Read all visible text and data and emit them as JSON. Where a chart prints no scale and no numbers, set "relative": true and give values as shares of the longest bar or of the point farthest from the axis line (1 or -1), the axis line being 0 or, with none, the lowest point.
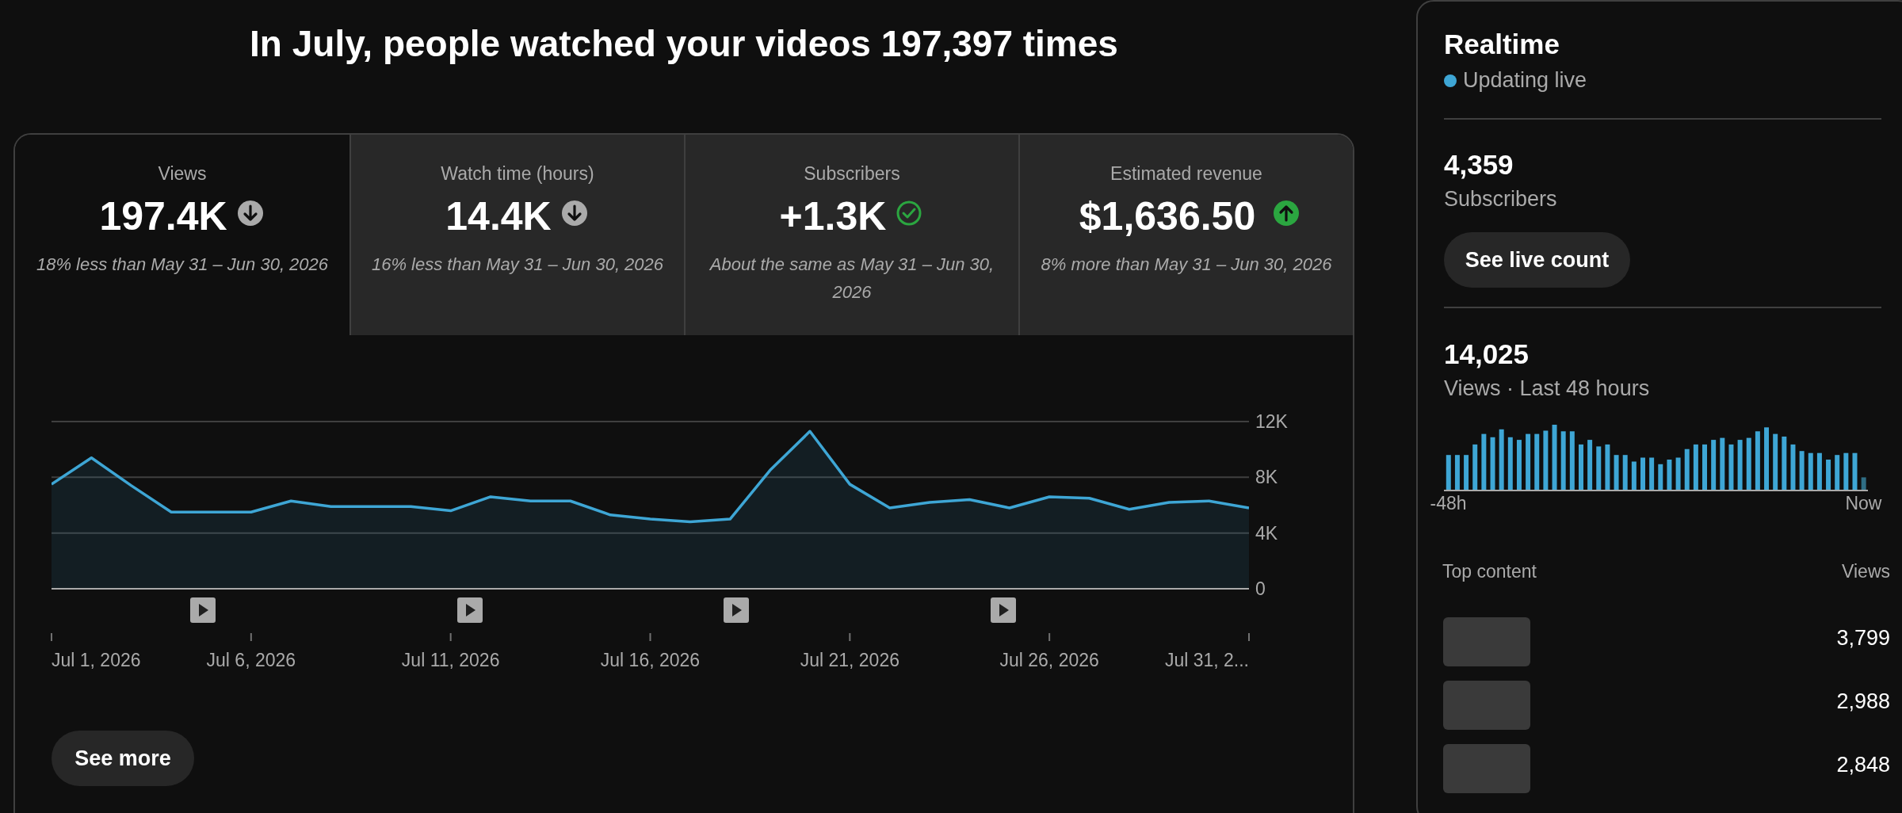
{
  "chart_data": [
    {
      "type": "other",
      "title": "In July, people watched your videos 197,397 times",
      "annotations": [
        "Views",
        "197.4K",
        "18% less than May 31 – Jun 30, 2026",
        "Watch time (hours)",
        "14.4K",
        "16% less than May 31 – Jun 30, 2026",
        "Subscribers",
        "+1.3K",
        "About the same as May 31 – Jun 30, 2026",
        "Estimated revenue",
        "$1,636.50",
        "8% more than May 31 – Jun 30, 2026",
        "See more"
      ]
    },
    {
      "type": "area",
      "x": [
        "2026-07-01",
        "2026-07-02",
        "2026-07-03",
        "2026-07-04",
        "2026-07-05",
        "2026-07-06",
        "2026-07-07",
        "2026-07-08",
        "2026-07-09",
        "2026-07-10",
        "2026-07-11",
        "2026-07-12",
        "2026-07-13",
        "2026-07-14",
        "2026-07-15",
        "2026-07-16",
        "2026-07-17",
        "2026-07-18",
        "2026-07-19",
        "2026-07-20",
        "2026-07-21",
        "2026-07-22",
        "2026-07-23",
        "2026-07-24",
        "2026-07-25",
        "2026-07-26",
        "2026-07-27",
        "2026-07-28",
        "2026-07-29",
        "2026-07-30",
        "2026-07-31"
      ],
      "series": [
        {
          "color": "#3ea6d5",
          "values": [
            7500,
            9400,
            7400,
            5500,
            5500,
            5500,
            6300,
            5900,
            5900,
            5900,
            5600,
            6600,
            6300,
            6300,
            5300,
            5000,
            4800,
            5000,
            8500,
            11300,
            7500,
            5800,
            6200,
            6400,
            5800,
            6600,
            6500,
            5700,
            6200,
            6300,
            5800
          ]
        }
      ],
      "xlim": [
        "2026-07-01",
        "2026-07-31"
      ],
      "xticks": [
        {
          "value": "2026-07-01",
          "label": "Jul 1, 2026"
        },
        {
          "value": "2026-07-06",
          "label": "Jul 6, 2026"
        },
        {
          "value": "2026-07-11",
          "label": "Jul 11, 2026"
        },
        {
          "value": "2026-07-16",
          "label": "Jul 16, 2026"
        },
        {
          "value": "2026-07-21",
          "label": "Jul 21, 2026"
        },
        {
          "value": "2026-07-26",
          "label": "Jul 26, 2026"
        },
        {
          "value": "2026-07-31",
          "label": "Jul 31, 2..."
        }
      ],
      "ylim": [
        0,
        12000
      ],
      "yticks": [
        {
          "value": 0,
          "label": "0"
        },
        {
          "value": 4000,
          "label": "4K"
        },
        {
          "value": 8000,
          "label": "8K"
        },
        {
          "value": 12000,
          "label": "12K"
        }
      ],
      "grid": "y"
    },
    {
      "type": "bar",
      "title": "Realtime",
      "subtitle": "Updating live",
      "annotations": [
        "4,359",
        "Subscribers",
        "See live count",
        "14,025",
        "Views · Last 48 hours"
      ],
      "relative": true,
      "categories": [
        "-48h",
        null,
        null,
        null,
        null,
        null,
        null,
        null,
        null,
        null,
        null,
        null,
        null,
        null,
        null,
        null,
        null,
        null,
        null,
        null,
        null,
        null,
        null,
        null,
        null,
        null,
        null,
        null,
        null,
        null,
        null,
        null,
        null,
        null,
        null,
        null,
        null,
        null,
        null,
        null,
        null,
        null,
        null,
        null,
        null,
        null,
        null,
        "Now"
      ],
      "values": [
        0.54,
        0.54,
        0.54,
        0.7,
        0.86,
        0.81,
        0.93,
        0.81,
        0.77,
        0.86,
        0.86,
        0.91,
        1,
        0.9,
        0.9,
        0.7,
        0.77,
        0.67,
        0.7,
        0.54,
        0.54,
        0.44,
        0.5,
        0.5,
        0.4,
        0.47,
        0.5,
        0.63,
        0.7,
        0.7,
        0.77,
        0.8,
        0.7,
        0.77,
        0.8,
        0.9,
        0.96,
        0.86,
        0.82,
        0.7,
        0.6,
        0.57,
        0.57,
        0.47,
        0.54,
        0.57,
        0.57,
        0.2
      ],
      "colors": [
        "#3ea6d5",
        "#3ea6d5",
        "#3ea6d5",
        "#3ea6d5",
        "#3ea6d5",
        "#3ea6d5",
        "#3ea6d5",
        "#3ea6d5",
        "#3ea6d5",
        "#3ea6d5",
        "#3ea6d5",
        "#3ea6d5",
        "#3ea6d5",
        "#3ea6d5",
        "#3ea6d5",
        "#3ea6d5",
        "#3ea6d5",
        "#3ea6d5",
        "#3ea6d5",
        "#3ea6d5",
        "#3ea6d5",
        "#3ea6d5",
        "#3ea6d5",
        "#3ea6d5",
        "#3ea6d5",
        "#3ea6d5",
        "#3ea6d5",
        "#3ea6d5",
        "#3ea6d5",
        "#3ea6d5",
        "#3ea6d5",
        "#3ea6d5",
        "#3ea6d5",
        "#3ea6d5",
        "#3ea6d5",
        "#3ea6d5",
        "#3ea6d5",
        "#3ea6d5",
        "#3ea6d5",
        "#3ea6d5",
        "#3ea6d5",
        "#3ea6d5",
        "#3ea6d5",
        "#3ea6d5",
        "#3ea6d5",
        "#3ea6d5",
        "#3ea6d5",
        "#2f6e85"
      ]
    },
    {
      "type": "other",
      "title": "Top content",
      "annotations": [
        "Views",
        "3,799",
        "2,988",
        "2,848"
      ]
    }
  ]
}
